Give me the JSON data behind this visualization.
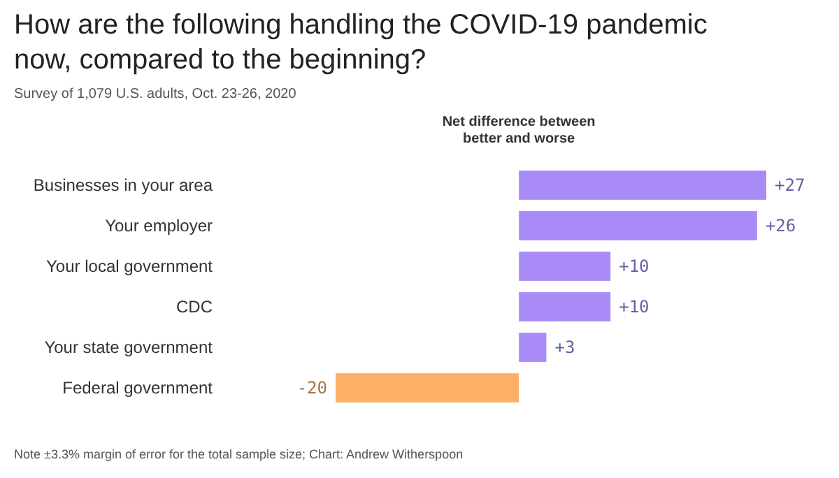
{
  "chart_data": {
    "type": "bar",
    "orientation": "horizontal",
    "title": "How are the following handling the COVID-19 pandemic now, compared to the beginning?",
    "subtitle": "Survey of 1,079 U.S. adults, Oct. 23-26, 2020",
    "xlabel": "Net difference between better and worse",
    "categories": [
      "Businesses in your area",
      "Your employer",
      "Your local government",
      "CDC",
      "Your state government",
      "Federal government"
    ],
    "values": [
      27,
      26,
      10,
      10,
      3,
      -20
    ],
    "colors": [
      "#a98bf8",
      "#a98bf8",
      "#a98bf8",
      "#a98bf8",
      "#a98bf8",
      "#fcb066"
    ],
    "value_labels": [
      "+27",
      "+26",
      "+10",
      "+10",
      "+3",
      "-20"
    ],
    "annotations": [
      "Note ±3.3% margin of error for the total sample size; Chart: Andrew Witherspoon"
    ]
  }
}
